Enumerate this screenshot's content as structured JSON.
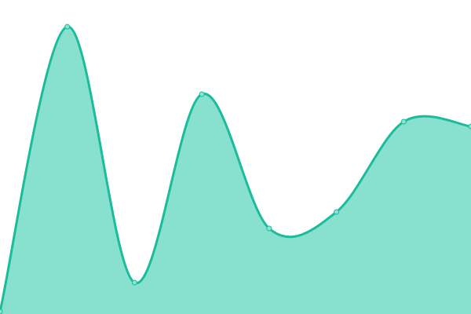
{
  "chart_data": {
    "type": "area",
    "curve": "smooth",
    "x": [
      0,
      1,
      2,
      3,
      4,
      5,
      6,
      7
    ],
    "values": [
      3,
      366,
      40,
      280,
      109,
      130,
      245,
      239
    ],
    "ylim": [
      0,
      400
    ],
    "grid": false,
    "axes_visible": false,
    "legend": "none",
    "colors": {
      "line": "#1abc9c",
      "fill": "#88e0cf",
      "point_fill": "#8fe3d2"
    }
  }
}
